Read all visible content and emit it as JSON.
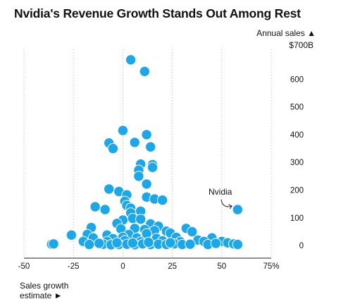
{
  "title": "Nvidia's Revenue Growth Stands Out Among Rest",
  "chart_data": {
    "type": "scatter",
    "title": "Nvidia's Revenue Growth Stands Out Among Rest",
    "xlabel": "Sales growth estimate ►",
    "ylabel": "Annual sales ▲",
    "y_top_label": "$700B",
    "xlim": [
      -50,
      75
    ],
    "ylim": [
      -25,
      700
    ],
    "x_ticks": [
      -50,
      -25,
      0,
      25,
      50,
      75
    ],
    "x_tick_labels": [
      "-50",
      "-25",
      "0",
      "25",
      "50",
      "75%"
    ],
    "y_ticks": [
      0,
      100,
      200,
      300,
      400,
      500,
      600
    ],
    "y_tick_labels": [
      "0",
      "100",
      "200",
      "300",
      "400",
      "500",
      "600"
    ],
    "grid": "vertical",
    "point_color": "#1aa7ec",
    "annotation": {
      "text": "Nvidia",
      "x": 58,
      "y": 130
    },
    "points": [
      [
        4,
        670
      ],
      [
        11,
        628
      ],
      [
        0,
        415
      ],
      [
        12,
        400
      ],
      [
        -7,
        370
      ],
      [
        6,
        372
      ],
      [
        -5,
        350
      ],
      [
        14,
        356
      ],
      [
        9,
        294
      ],
      [
        15,
        292
      ],
      [
        15,
        282
      ],
      [
        8,
        272
      ],
      [
        8,
        250
      ],
      [
        12,
        222
      ],
      [
        -7,
        204
      ],
      [
        -2,
        195
      ],
      [
        2,
        183
      ],
      [
        12,
        175
      ],
      [
        16,
        168
      ],
      [
        20,
        164
      ],
      [
        1,
        160
      ],
      [
        -14,
        140
      ],
      [
        2,
        145
      ],
      [
        4,
        135
      ],
      [
        -9,
        130
      ],
      [
        4,
        118
      ],
      [
        58,
        130
      ],
      [
        9,
        124
      ],
      [
        0,
        92
      ],
      [
        5,
        98
      ],
      [
        9,
        95
      ],
      [
        -3,
        80
      ],
      [
        14,
        78
      ],
      [
        18,
        70
      ],
      [
        -16,
        65
      ],
      [
        -1,
        60
      ],
      [
        6,
        62
      ],
      [
        11,
        58
      ],
      [
        16,
        54
      ],
      [
        22,
        52
      ],
      [
        -18,
        40
      ],
      [
        -8,
        38
      ],
      [
        3,
        40
      ],
      [
        12,
        43
      ],
      [
        24,
        45
      ],
      [
        32,
        62
      ],
      [
        35,
        50
      ],
      [
        -26,
        38
      ],
      [
        -15,
        28
      ],
      [
        -5,
        25
      ],
      [
        0,
        30
      ],
      [
        7,
        28
      ],
      [
        17,
        26
      ],
      [
        27,
        30
      ],
      [
        45,
        28
      ],
      [
        -20,
        15
      ],
      [
        -8,
        15
      ],
      [
        1,
        18
      ],
      [
        9,
        14
      ],
      [
        20,
        17
      ],
      [
        29,
        14
      ],
      [
        38,
        20
      ],
      [
        41,
        15
      ],
      [
        50,
        15
      ],
      [
        53,
        10
      ],
      [
        -36,
        5
      ],
      [
        -35,
        6
      ],
      [
        -17,
        4
      ],
      [
        -10,
        5
      ],
      [
        -6,
        3
      ],
      [
        -2,
        4
      ],
      [
        2,
        5
      ],
      [
        6,
        3
      ],
      [
        10,
        6
      ],
      [
        14,
        4
      ],
      [
        18,
        5
      ],
      [
        22,
        4
      ],
      [
        26,
        6
      ],
      [
        30,
        4
      ],
      [
        34,
        5
      ],
      [
        43,
        4
      ],
      [
        56,
        6
      ],
      [
        58,
        4
      ],
      [
        -12,
        8
      ],
      [
        -3,
        10
      ],
      [
        5,
        9
      ],
      [
        13,
        12
      ],
      [
        24,
        10
      ],
      [
        47,
        8
      ]
    ]
  }
}
